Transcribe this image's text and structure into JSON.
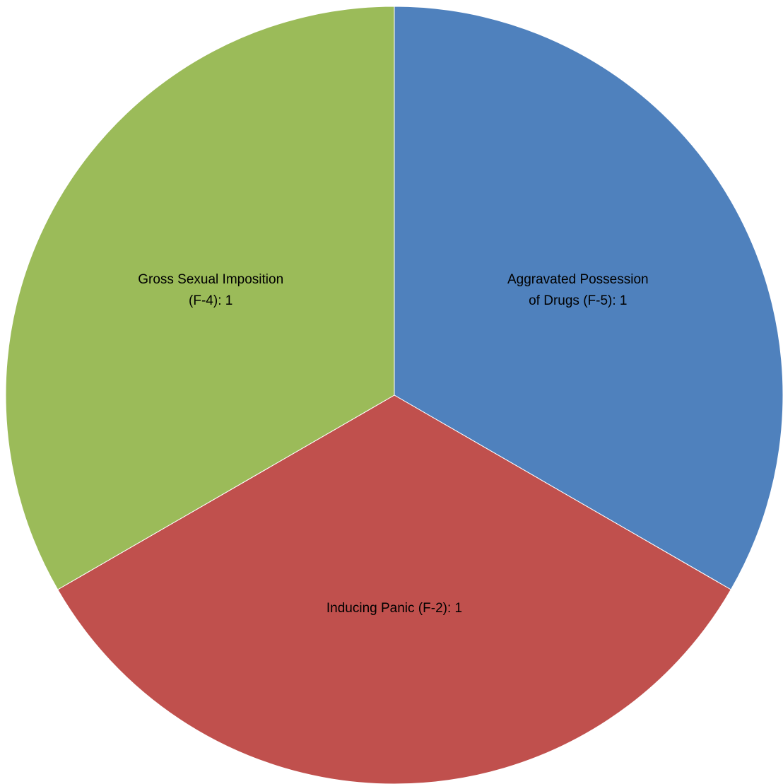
{
  "chart_data": {
    "type": "pie",
    "title": "",
    "slices": [
      {
        "name": "Aggravated Possession of Drugs (F-5)",
        "value": 1,
        "color": "#4F81BD",
        "label_lines": [
          "Aggravated Possession",
          "of Drugs (F-5): 1"
        ]
      },
      {
        "name": "Inducing Panic (F-2)",
        "value": 1,
        "color": "#C0504D",
        "label_lines": [
          "Inducing Panic (F-2): 1"
        ]
      },
      {
        "name": "Gross Sexual Imposition (F-4)",
        "value": 1,
        "color": "#9BBB59",
        "label_lines": [
          "Gross Sexual Imposition",
          "(F-4): 1"
        ]
      }
    ],
    "start_angle_deg": 0,
    "direction": "clockwise",
    "legend": "none"
  }
}
